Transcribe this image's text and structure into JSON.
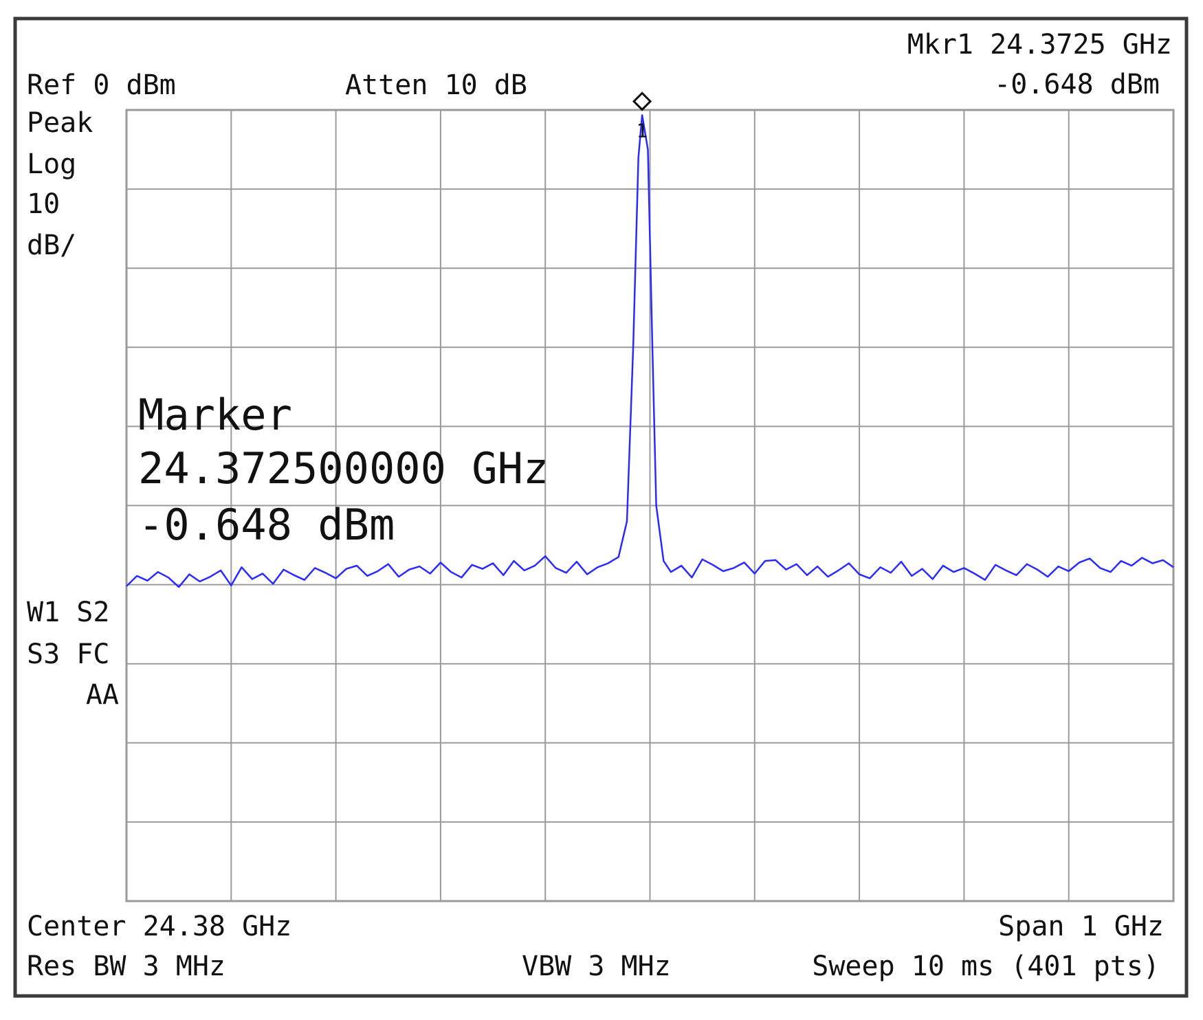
{
  "chart_data": {
    "type": "line",
    "header": {
      "ref": "Ref 0 dBm",
      "atten": "Atten 10 dB",
      "marker_freq": "Mkr1  24.3725 GHz",
      "marker_level": "-0.648 dBm"
    },
    "left_panel": [
      "Peak",
      "Log",
      "10",
      "dB/"
    ],
    "status": [
      "W1  S2",
      "S3  FC",
      "AA"
    ],
    "annotation": [
      "Marker",
      "24.372500000 GHz",
      "-0.648 dBm"
    ],
    "marker_label": "1",
    "footer": {
      "center": "Center 24.38 GHz",
      "span": "Span 1 GHz",
      "rbw": "Res BW 3 MHz",
      "vbw": "VBW 3 MHz",
      "sweep": "Sweep 10 ms (401 pts)"
    },
    "xlim": [
      23.88,
      24.88
    ],
    "ylim": [
      -100,
      0
    ],
    "grid": true,
    "x": [
      23.88,
      23.89,
      23.9,
      23.91,
      23.92,
      23.93,
      23.94,
      23.95,
      23.96,
      23.97,
      23.98,
      23.99,
      24.0,
      24.01,
      24.02,
      24.03,
      24.04,
      24.05,
      24.06,
      24.07,
      24.08,
      24.09,
      24.1,
      24.11,
      24.12,
      24.13,
      24.14,
      24.15,
      24.16,
      24.17,
      24.18,
      24.19,
      24.2,
      24.21,
      24.22,
      24.23,
      24.24,
      24.25,
      24.26,
      24.27,
      24.28,
      24.29,
      24.3,
      24.31,
      24.32,
      24.33,
      24.34,
      24.35,
      24.358,
      24.364,
      24.369,
      24.3725,
      24.378,
      24.382,
      24.386,
      24.393,
      24.4,
      24.41,
      24.42,
      24.43,
      24.44,
      24.45,
      24.46,
      24.47,
      24.48,
      24.49,
      24.5,
      24.51,
      24.52,
      24.53,
      24.54,
      24.55,
      24.56,
      24.57,
      24.58,
      24.59,
      24.6,
      24.61,
      24.62,
      24.63,
      24.64,
      24.65,
      24.66,
      24.67,
      24.68,
      24.69,
      24.7,
      24.71,
      24.72,
      24.73,
      24.74,
      24.75,
      24.76,
      24.77,
      24.78,
      24.79,
      24.8,
      24.81,
      24.82,
      24.83,
      24.84,
      24.85,
      24.86,
      24.87,
      24.88
    ],
    "series": [
      {
        "color": "#2a2aff",
        "marker_index": 51,
        "values": [
          -60.2,
          -58.9,
          -59.5,
          -58.4,
          -59.1,
          -60.3,
          -58.7,
          -59.6,
          -59.0,
          -58.2,
          -60.1,
          -57.8,
          -59.3,
          -58.6,
          -59.9,
          -58.1,
          -58.8,
          -59.4,
          -57.9,
          -58.5,
          -59.2,
          -58.0,
          -57.6,
          -58.9,
          -58.3,
          -57.4,
          -59.0,
          -58.1,
          -57.7,
          -58.6,
          -57.2,
          -58.4,
          -59.1,
          -57.5,
          -58.0,
          -57.3,
          -58.8,
          -57.0,
          -58.2,
          -57.6,
          -56.4,
          -57.9,
          -58.5,
          -57.1,
          -58.7,
          -57.8,
          -57.3,
          -56.5,
          -52.0,
          -30.0,
          -6.0,
          -0.648,
          -5.0,
          -28.0,
          -50.0,
          -57.0,
          -58.4,
          -57.6,
          -59.1,
          -56.8,
          -57.5,
          -58.3,
          -57.9,
          -57.2,
          -58.6,
          -57.0,
          -56.9,
          -58.1,
          -57.4,
          -58.8,
          -57.7,
          -59.0,
          -58.2,
          -57.3,
          -58.7,
          -59.2,
          -57.8,
          -58.5,
          -57.1,
          -58.9,
          -58.0,
          -59.3,
          -57.6,
          -58.4,
          -57.9,
          -58.6,
          -59.4,
          -57.5,
          -58.2,
          -58.8,
          -57.4,
          -58.1,
          -59.0,
          -57.7,
          -58.3,
          -57.2,
          -56.7,
          -57.9,
          -58.4,
          -57.0,
          -57.6,
          -56.6,
          -57.3,
          -56.9,
          -57.8
        ]
      }
    ]
  }
}
